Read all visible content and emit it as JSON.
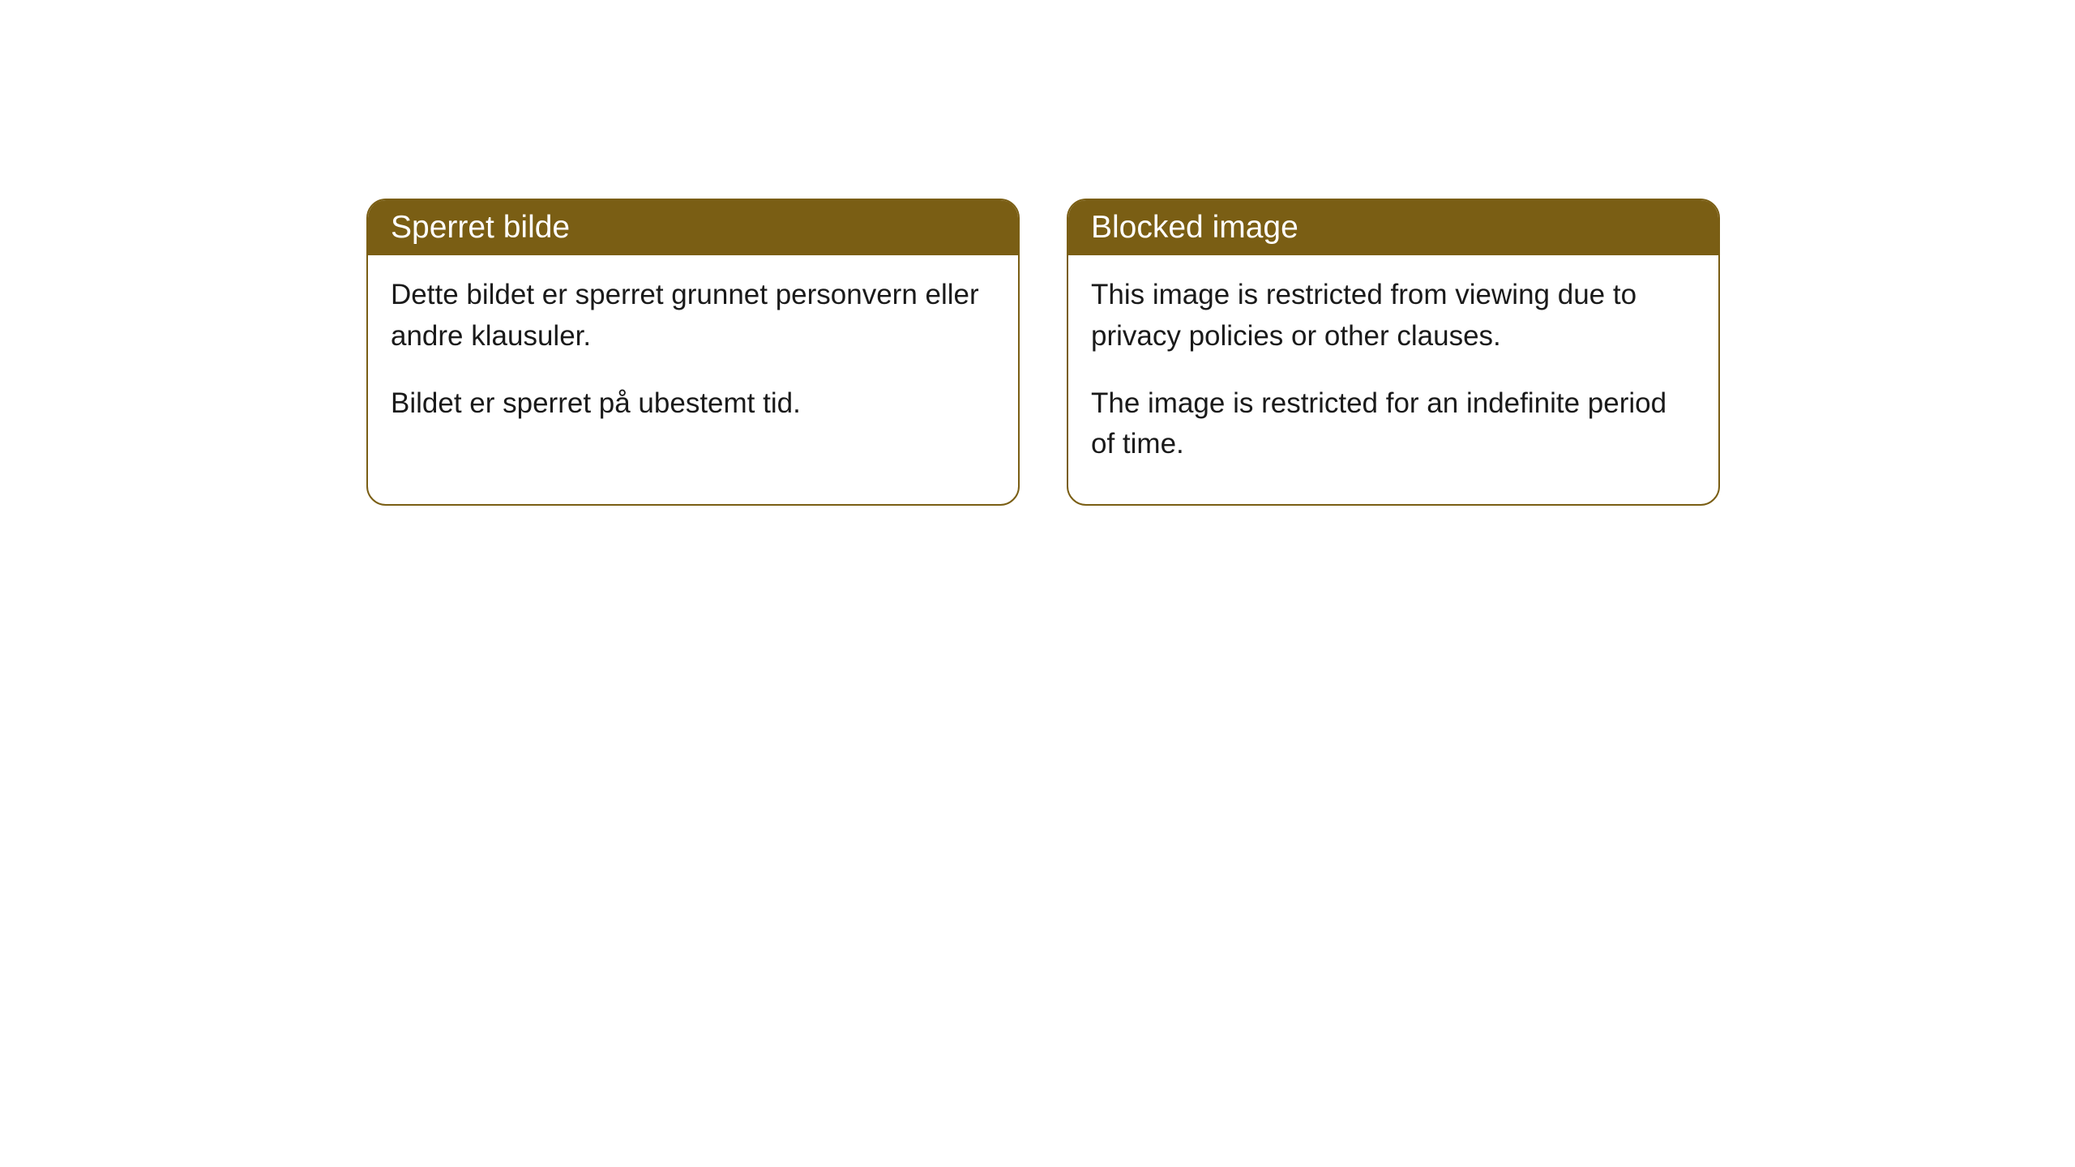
{
  "cards": [
    {
      "title": "Sperret bilde",
      "paragraph1": "Dette bildet er sperret grunnet personvern eller andre klausuler.",
      "paragraph2": "Bildet er sperret på ubestemt tid."
    },
    {
      "title": "Blocked image",
      "paragraph1": "This image is restricted from viewing due to privacy policies or other clauses.",
      "paragraph2": "The image is restricted for an indefinite period of time."
    }
  ],
  "styles": {
    "header_background": "#7a5e14",
    "header_text_color": "#ffffff",
    "border_color": "#7a5e14",
    "body_background": "#ffffff",
    "body_text_color": "#1a1a1a",
    "border_radius": 24,
    "header_fontsize": 39,
    "body_fontsize": 35
  }
}
